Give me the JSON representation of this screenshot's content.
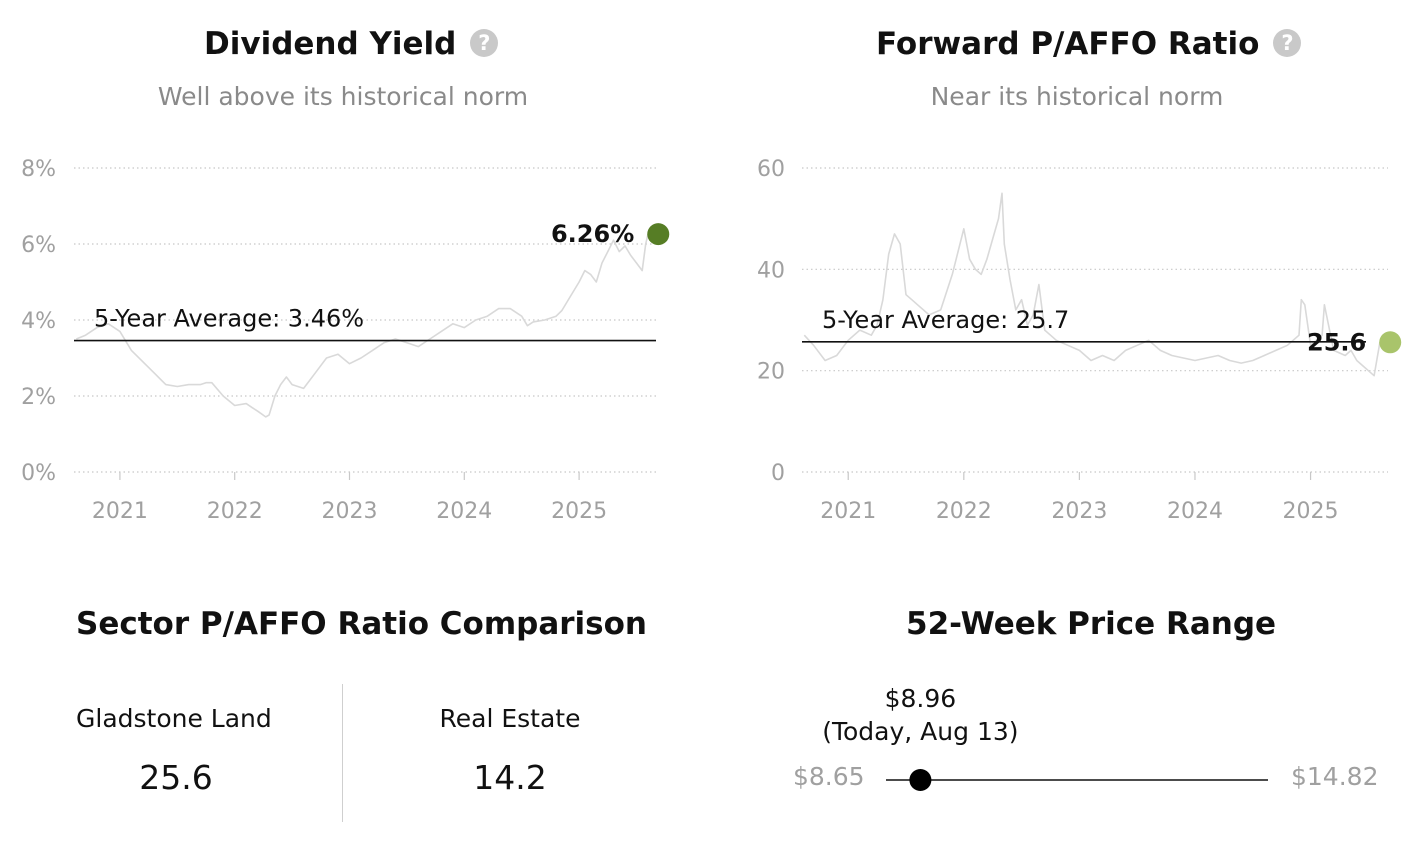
{
  "yield_panel": {
    "title": "Dividend Yield",
    "subtitle": "Well above its historical norm",
    "help_icon": "question-circle-icon"
  },
  "pratio_panel": {
    "title": "Forward P/AFFO Ratio",
    "subtitle": "Near its historical norm",
    "help_icon": "question-circle-icon"
  },
  "sector": {
    "title": "Sector P/AFFO Ratio Comparison",
    "company_label": "Gladstone Land",
    "company_value": "25.6",
    "sector_label": "Real Estate",
    "sector_value": "14.2"
  },
  "price_range": {
    "title": "52-Week Price Range",
    "low": "$8.65",
    "high": "$14.82",
    "current_label": "$8.96",
    "current_note": "(Today, Aug 13)",
    "low_value": 8.65,
    "high_value": 14.82,
    "current_value": 8.96
  },
  "chart_data": [
    {
      "type": "line",
      "title": "Dividend Yield",
      "subtitle": "Well above its historical norm",
      "y_ticks": [
        "0%",
        "2%",
        "4%",
        "6%",
        "8%"
      ],
      "ylim": [
        0,
        8
      ],
      "x_ticks": [
        "2021",
        "2022",
        "2023",
        "2024",
        "2025"
      ],
      "xlim": [
        2020.6,
        2025.67
      ],
      "grid": true,
      "average": {
        "label": "5-Year Average: 3.46%",
        "value": 3.46
      },
      "current": {
        "label": "6.26%",
        "x": 2025.62,
        "value": 6.26,
        "color": "#567d25"
      },
      "series": [
        {
          "color": "#d9d9d9",
          "x": [
            2020.62,
            2020.7,
            2020.8,
            2020.9,
            2021.0,
            2021.1,
            2021.2,
            2021.3,
            2021.4,
            2021.5,
            2021.6,
            2021.7,
            2021.75,
            2021.8,
            2021.9,
            2022.0,
            2022.1,
            2022.15,
            2022.2,
            2022.27,
            2022.3,
            2022.35,
            2022.4,
            2022.45,
            2022.5,
            2022.6,
            2022.7,
            2022.8,
            2022.9,
            2023.0,
            2023.1,
            2023.2,
            2023.3,
            2023.4,
            2023.5,
            2023.6,
            2023.7,
            2023.8,
            2023.9,
            2024.0,
            2024.1,
            2024.2,
            2024.3,
            2024.4,
            2024.5,
            2024.55,
            2024.6,
            2024.7,
            2024.8,
            2024.85,
            2024.9,
            2025.0,
            2025.05,
            2025.1,
            2025.15,
            2025.2,
            2025.25,
            2025.3,
            2025.35,
            2025.4,
            2025.45,
            2025.5,
            2025.55,
            2025.58,
            2025.6
          ],
          "values": [
            3.5,
            3.6,
            3.8,
            3.9,
            3.7,
            3.2,
            2.9,
            2.6,
            2.3,
            2.25,
            2.3,
            2.3,
            2.35,
            2.35,
            2.0,
            1.75,
            1.8,
            1.7,
            1.6,
            1.45,
            1.5,
            2.0,
            2.3,
            2.5,
            2.3,
            2.2,
            2.6,
            3.0,
            3.1,
            2.85,
            3.0,
            3.2,
            3.4,
            3.5,
            3.4,
            3.3,
            3.5,
            3.7,
            3.9,
            3.8,
            4.0,
            4.1,
            4.3,
            4.3,
            4.1,
            3.85,
            3.95,
            4.0,
            4.1,
            4.25,
            4.5,
            5.0,
            5.3,
            5.2,
            5.0,
            5.5,
            5.8,
            6.1,
            5.8,
            5.95,
            5.7,
            5.5,
            5.3,
            6.0,
            6.26
          ]
        }
      ]
    },
    {
      "type": "line",
      "title": "Forward P/AFFO Ratio",
      "subtitle": "Near its historical norm",
      "y_ticks": [
        "0",
        "20",
        "40",
        "60"
      ],
      "ylim": [
        0,
        60
      ],
      "x_ticks": [
        "2021",
        "2022",
        "2023",
        "2024",
        "2025"
      ],
      "xlim": [
        2020.6,
        2025.67
      ],
      "grid": true,
      "average": {
        "label": "5-Year Average: 25.7",
        "value": 25.7
      },
      "current": {
        "label": "25.6",
        "x": 2025.62,
        "value": 25.6,
        "color": "#a9c46b"
      },
      "series": [
        {
          "color": "#d9d9d9",
          "x": [
            2020.62,
            2020.7,
            2020.8,
            2020.9,
            2021.0,
            2021.1,
            2021.2,
            2021.25,
            2021.3,
            2021.35,
            2021.4,
            2021.45,
            2021.5,
            2021.55,
            2021.6,
            2021.7,
            2021.8,
            2021.9,
            2022.0,
            2022.05,
            2022.1,
            2022.15,
            2022.2,
            2022.25,
            2022.3,
            2022.33,
            2022.35,
            2022.4,
            2022.45,
            2022.5,
            2022.55,
            2022.6,
            2022.65,
            2022.7,
            2022.75,
            2022.8,
            2022.9,
            2023.0,
            2023.1,
            2023.2,
            2023.3,
            2023.4,
            2023.5,
            2023.6,
            2023.7,
            2023.8,
            2023.9,
            2024.0,
            2024.1,
            2024.2,
            2024.3,
            2024.4,
            2024.5,
            2024.6,
            2024.7,
            2024.8,
            2024.9,
            2024.92,
            2024.95,
            2025.0,
            2025.1,
            2025.12,
            2025.2,
            2025.3,
            2025.35,
            2025.4,
            2025.45,
            2025.5,
            2025.55,
            2025.6
          ],
          "values": [
            27,
            25,
            22,
            23,
            26,
            28,
            27,
            29,
            34,
            43,
            47,
            45,
            35,
            34,
            33,
            31,
            32,
            39,
            48,
            42,
            40,
            39,
            42,
            46,
            50,
            55,
            45,
            38,
            32,
            34,
            29,
            31,
            37,
            28,
            27,
            26,
            25,
            24,
            22,
            23,
            22,
            24,
            25,
            26,
            24,
            23,
            22.5,
            22,
            22.5,
            23,
            22,
            21.5,
            22,
            23,
            24,
            25,
            27,
            34,
            33,
            25,
            27,
            33,
            24,
            23,
            24,
            22,
            21,
            20,
            19,
            25.6
          ]
        }
      ]
    }
  ]
}
